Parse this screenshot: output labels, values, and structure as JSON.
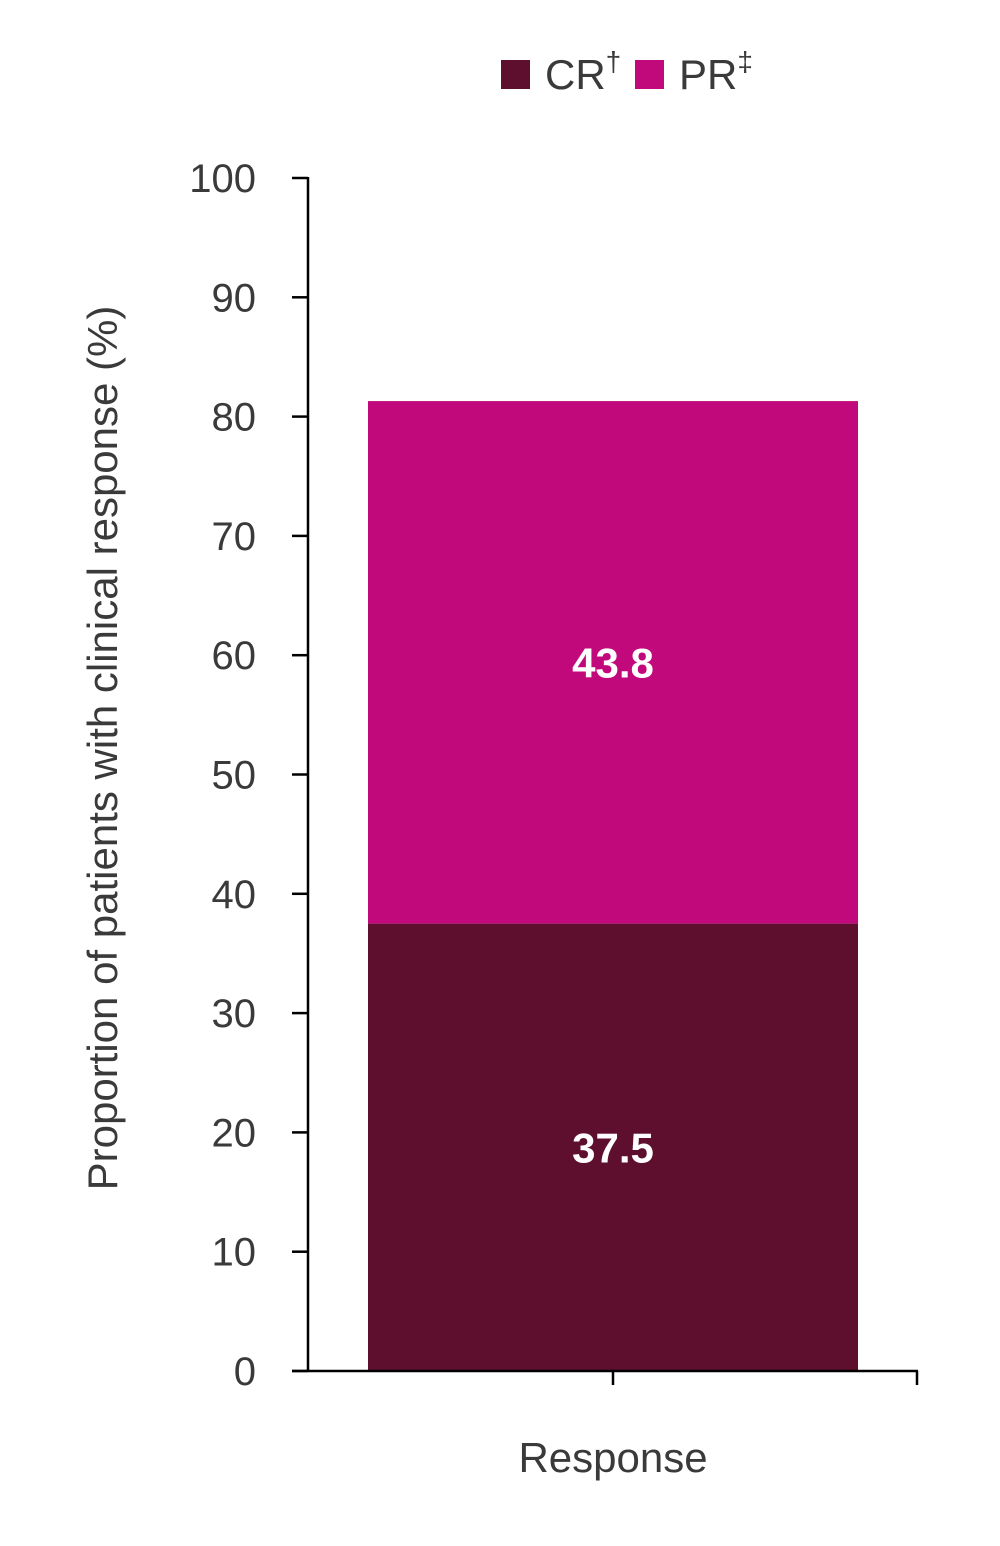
{
  "chart_data": {
    "type": "bar",
    "stacked": true,
    "categories": [
      "Response"
    ],
    "series": [
      {
        "name": "CR",
        "marker": "†",
        "values": [
          37.5
        ],
        "color": "#5e0f2d"
      },
      {
        "name": "PR",
        "marker": "‡",
        "values": [
          43.8
        ],
        "color": "#c2097b"
      }
    ],
    "xlabel": "Response",
    "ylabel": "Proportion of patients with clinical response (%)",
    "ylim": [
      0,
      100
    ],
    "yticks": [
      0,
      10,
      20,
      30,
      40,
      50,
      60,
      70,
      80,
      90,
      100
    ],
    "grid": false,
    "legend": "top-right",
    "data_labels": [
      "37.5",
      "43.8"
    ]
  }
}
